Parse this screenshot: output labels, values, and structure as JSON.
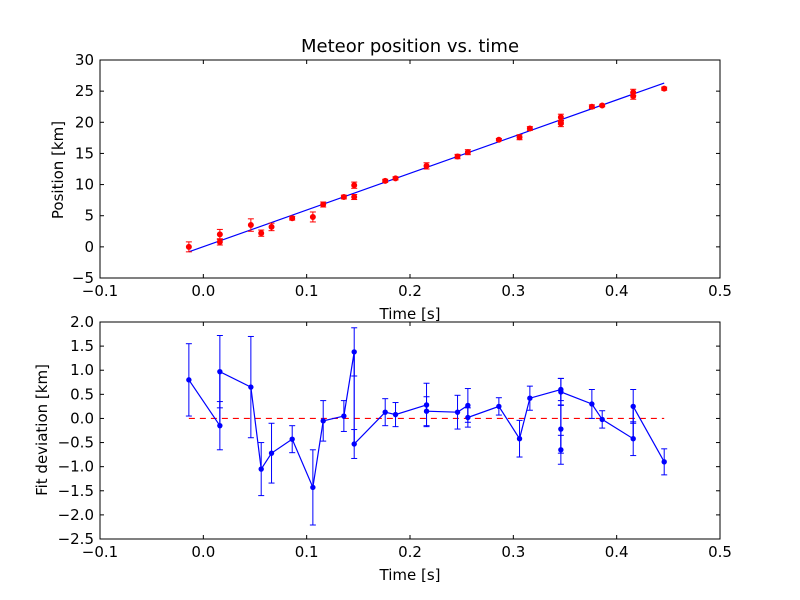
{
  "chart_data": [
    {
      "type": "scatter",
      "title": "Meteor position vs. time",
      "xlabel": "Time [s]",
      "ylabel": "Position [km]",
      "xlim": [
        -0.1,
        0.5
      ],
      "ylim": [
        -5,
        30
      ],
      "xticks": [
        -0.1,
        0.0,
        0.1,
        0.2,
        0.3,
        0.4,
        0.5
      ],
      "xtick_labels": [
        "−0.1",
        "0.0",
        "0.1",
        "0.2",
        "0.3",
        "0.4",
        "0.5"
      ],
      "yticks": [
        -5,
        0,
        5,
        10,
        15,
        20,
        25,
        30
      ],
      "ytick_labels": [
        "−5",
        "0",
        "5",
        "10",
        "15",
        "20",
        "25",
        "30"
      ],
      "grid": false,
      "colors": {
        "points": "#ff0000",
        "fit": "#0000ff"
      },
      "series": [
        {
          "kind": "errorbar-points",
          "points": [
            {
              "x": -0.014,
              "y": 0.0,
              "err": 0.8
            },
            {
              "x": 0.016,
              "y": 0.8,
              "err": 0.5
            },
            {
              "x": 0.016,
              "y": 2.0,
              "err": 0.8
            },
            {
              "x": 0.046,
              "y": 3.5,
              "err": 1.0
            },
            {
              "x": 0.056,
              "y": 2.2,
              "err": 0.5
            },
            {
              "x": 0.066,
              "y": 3.2,
              "err": 0.6
            },
            {
              "x": 0.086,
              "y": 4.6,
              "err": 0.3
            },
            {
              "x": 0.106,
              "y": 4.8,
              "err": 0.8
            },
            {
              "x": 0.116,
              "y": 6.8,
              "err": 0.4
            },
            {
              "x": 0.136,
              "y": 8.0,
              "err": 0.3
            },
            {
              "x": 0.146,
              "y": 8.0,
              "err": 0.4
            },
            {
              "x": 0.146,
              "y": 9.9,
              "err": 0.5
            },
            {
              "x": 0.176,
              "y": 10.6,
              "err": 0.25
            },
            {
              "x": 0.186,
              "y": 11.0,
              "err": 0.25
            },
            {
              "x": 0.216,
              "y": 13.0,
              "err": 0.5
            },
            {
              "x": 0.246,
              "y": 14.5,
              "err": 0.35
            },
            {
              "x": 0.256,
              "y": 15.2,
              "err": 0.4
            },
            {
              "x": 0.286,
              "y": 17.2,
              "err": 0.2
            },
            {
              "x": 0.306,
              "y": 17.6,
              "err": 0.4
            },
            {
              "x": 0.316,
              "y": 19.0,
              "err": 0.3
            },
            {
              "x": 0.346,
              "y": 19.8,
              "err": 0.5
            },
            {
              "x": 0.346,
              "y": 20.0,
              "err": 0.3
            },
            {
              "x": 0.346,
              "y": 20.8,
              "err": 0.5
            },
            {
              "x": 0.376,
              "y": 22.5,
              "err": 0.3
            },
            {
              "x": 0.386,
              "y": 22.7,
              "err": 0.2
            },
            {
              "x": 0.416,
              "y": 24.2,
              "err": 0.5
            },
            {
              "x": 0.416,
              "y": 24.8,
              "err": 0.5
            },
            {
              "x": 0.446,
              "y": 25.4,
              "err": 0.25
            }
          ]
        },
        {
          "kind": "fit-line",
          "x": [
            -0.014,
            0.446
          ],
          "y": [
            -0.8,
            26.3
          ]
        }
      ]
    },
    {
      "type": "line",
      "title": "",
      "xlabel": "Time [s]",
      "ylabel": "Fit deviation [km]",
      "xlim": [
        -0.1,
        0.5
      ],
      "ylim": [
        -2.5,
        2.0
      ],
      "xticks": [
        -0.1,
        0.0,
        0.1,
        0.2,
        0.3,
        0.4,
        0.5
      ],
      "xtick_labels": [
        "−0.1",
        "0.0",
        "0.1",
        "0.2",
        "0.3",
        "0.4",
        "0.5"
      ],
      "yticks": [
        -2.5,
        -2.0,
        -1.5,
        -1.0,
        -0.5,
        0.0,
        0.5,
        1.0,
        1.5,
        2.0
      ],
      "ytick_labels": [
        "−2.5",
        "−2.0",
        "−1.5",
        "−1.0",
        "−0.5",
        "0.0",
        "0.5",
        "1.0",
        "1.5",
        "2.0"
      ],
      "grid": false,
      "colors": {
        "line": "#0000ff",
        "zero": "#ff0000"
      },
      "zero_line": {
        "x": [
          -0.014,
          0.446
        ],
        "y": 0.0
      },
      "series": [
        {
          "kind": "errorbar-line",
          "points": [
            {
              "x": -0.014,
              "y": 0.8,
              "err": 0.75
            },
            {
              "x": 0.016,
              "y": -0.15,
              "err": 0.5
            },
            {
              "x": 0.016,
              "y": 0.97,
              "err": 0.75
            },
            {
              "x": 0.046,
              "y": 0.65,
              "err": 1.05
            },
            {
              "x": 0.056,
              "y": -1.05,
              "err": 0.55
            },
            {
              "x": 0.066,
              "y": -0.72,
              "err": 0.62
            },
            {
              "x": 0.086,
              "y": -0.43,
              "err": 0.28
            },
            {
              "x": 0.106,
              "y": -1.43,
              "err": 0.78
            },
            {
              "x": 0.116,
              "y": -0.05,
              "err": 0.42
            },
            {
              "x": 0.136,
              "y": 0.05,
              "err": 0.32
            },
            {
              "x": 0.146,
              "y": 1.38,
              "err": 0.5
            },
            {
              "x": 0.146,
              "y": -0.53,
              "err": 0.3
            },
            {
              "x": 0.176,
              "y": 0.13,
              "err": 0.28
            },
            {
              "x": 0.186,
              "y": 0.08,
              "err": 0.25
            },
            {
              "x": 0.216,
              "y": 0.28,
              "err": 0.45
            },
            {
              "x": 0.216,
              "y": 0.15,
              "err": 0.3
            },
            {
              "x": 0.246,
              "y": 0.13,
              "err": 0.35
            },
            {
              "x": 0.256,
              "y": 0.27,
              "err": 0.35
            },
            {
              "x": 0.256,
              "y": 0.02,
              "err": 0.2
            },
            {
              "x": 0.286,
              "y": 0.25,
              "err": 0.18
            },
            {
              "x": 0.306,
              "y": -0.42,
              "err": 0.38
            },
            {
              "x": 0.316,
              "y": 0.42,
              "err": 0.25
            },
            {
              "x": 0.346,
              "y": 0.6,
              "err": 0.23
            },
            {
              "x": 0.346,
              "y": -0.22,
              "err": 0.5
            },
            {
              "x": 0.346,
              "y": -0.65,
              "err": 0.3
            },
            {
              "x": 0.346,
              "y": 0.55,
              "err": 0.28
            },
            {
              "x": 0.376,
              "y": 0.3,
              "err": 0.3
            },
            {
              "x": 0.386,
              "y": -0.02,
              "err": 0.18
            },
            {
              "x": 0.416,
              "y": -0.42,
              "err": 0.35
            },
            {
              "x": 0.416,
              "y": 0.25,
              "err": 0.35
            },
            {
              "x": 0.446,
              "y": -0.9,
              "err": 0.27
            }
          ]
        }
      ]
    }
  ]
}
